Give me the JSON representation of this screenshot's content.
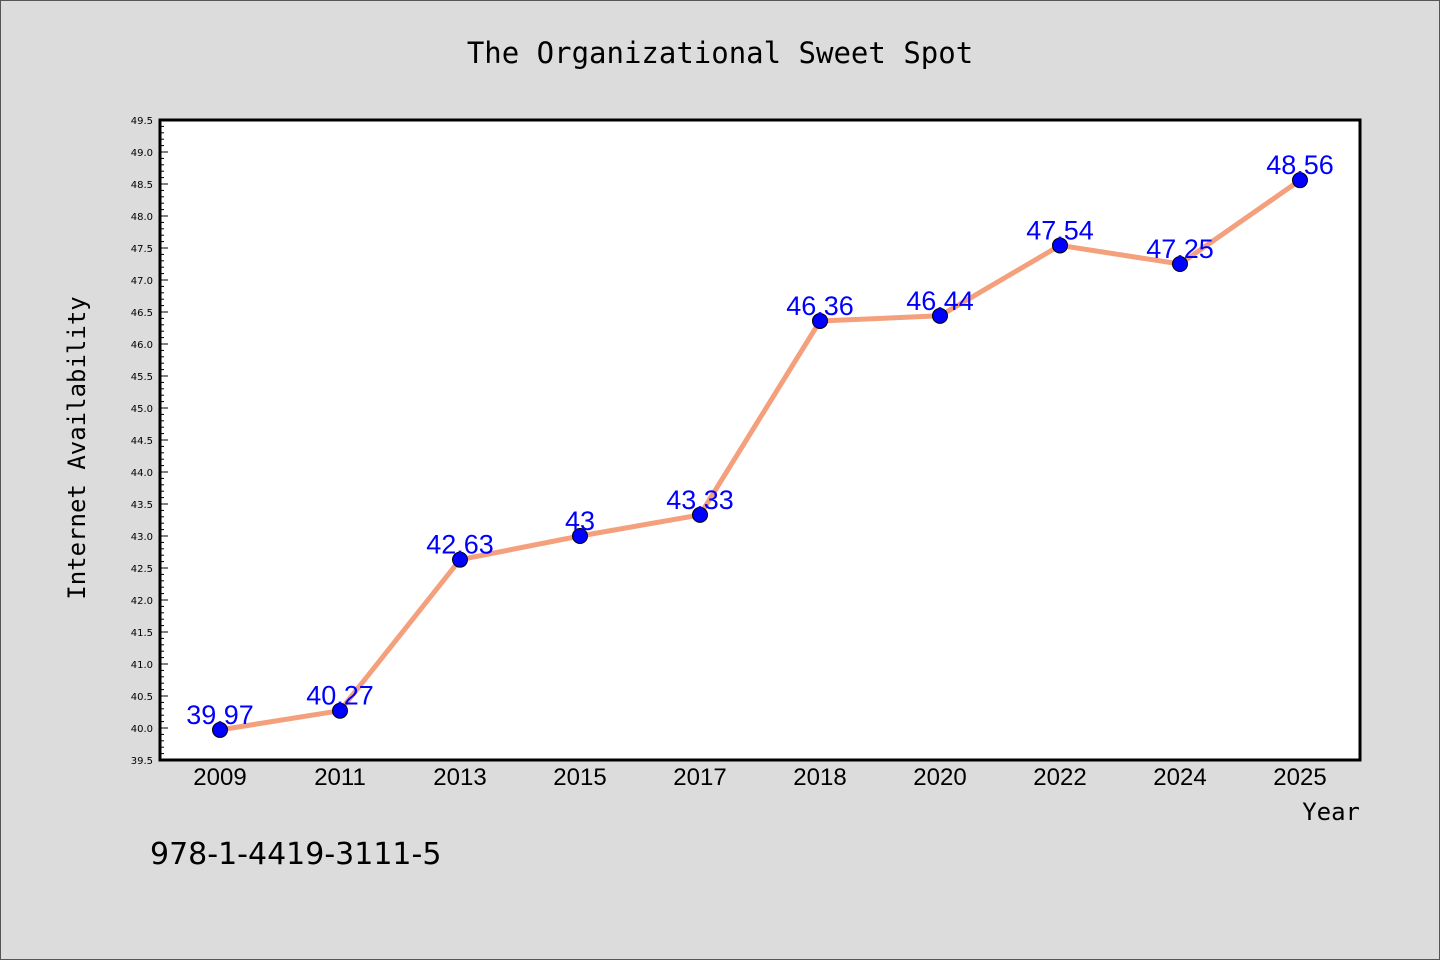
{
  "chart_data": {
    "type": "line",
    "title": "The Organizational Sweet Spot",
    "xlabel": "Year",
    "ylabel": "Internet Availability",
    "categories": [
      "2009",
      "2011",
      "2013",
      "2015",
      "2017",
      "2018",
      "2020",
      "2022",
      "2024",
      "2025"
    ],
    "series": [
      {
        "values": [
          39.97,
          40.27,
          42.63,
          43,
          43.33,
          46.36,
          46.44,
          47.54,
          47.25,
          48.56
        ],
        "data_labels": [
          "39.97",
          "40.27",
          "42.63",
          "43",
          "43.33",
          "46.36",
          "46.44",
          "47.54",
          "47.25",
          "48.56"
        ]
      }
    ],
    "ylim": [
      39.5,
      49.5
    ],
    "yticks": [
      "39.5",
      "40.0",
      "40.5",
      "41.0",
      "41.5",
      "42.0",
      "42.5",
      "43.0",
      "43.5",
      "44.0",
      "44.5",
      "45.0",
      "45.5",
      "46.0",
      "46.5",
      "47.0",
      "47.5",
      "48.0",
      "48.5",
      "49.0",
      "49.5"
    ],
    "grid": false,
    "legend": "none",
    "line_color": "#f4a07c",
    "marker_color": "#0000ff",
    "label_color": "#0000ff",
    "background_color": "#dcdcdc",
    "plot_background": "#ffffff"
  },
  "footnote": "978-1-4419-3111-5"
}
